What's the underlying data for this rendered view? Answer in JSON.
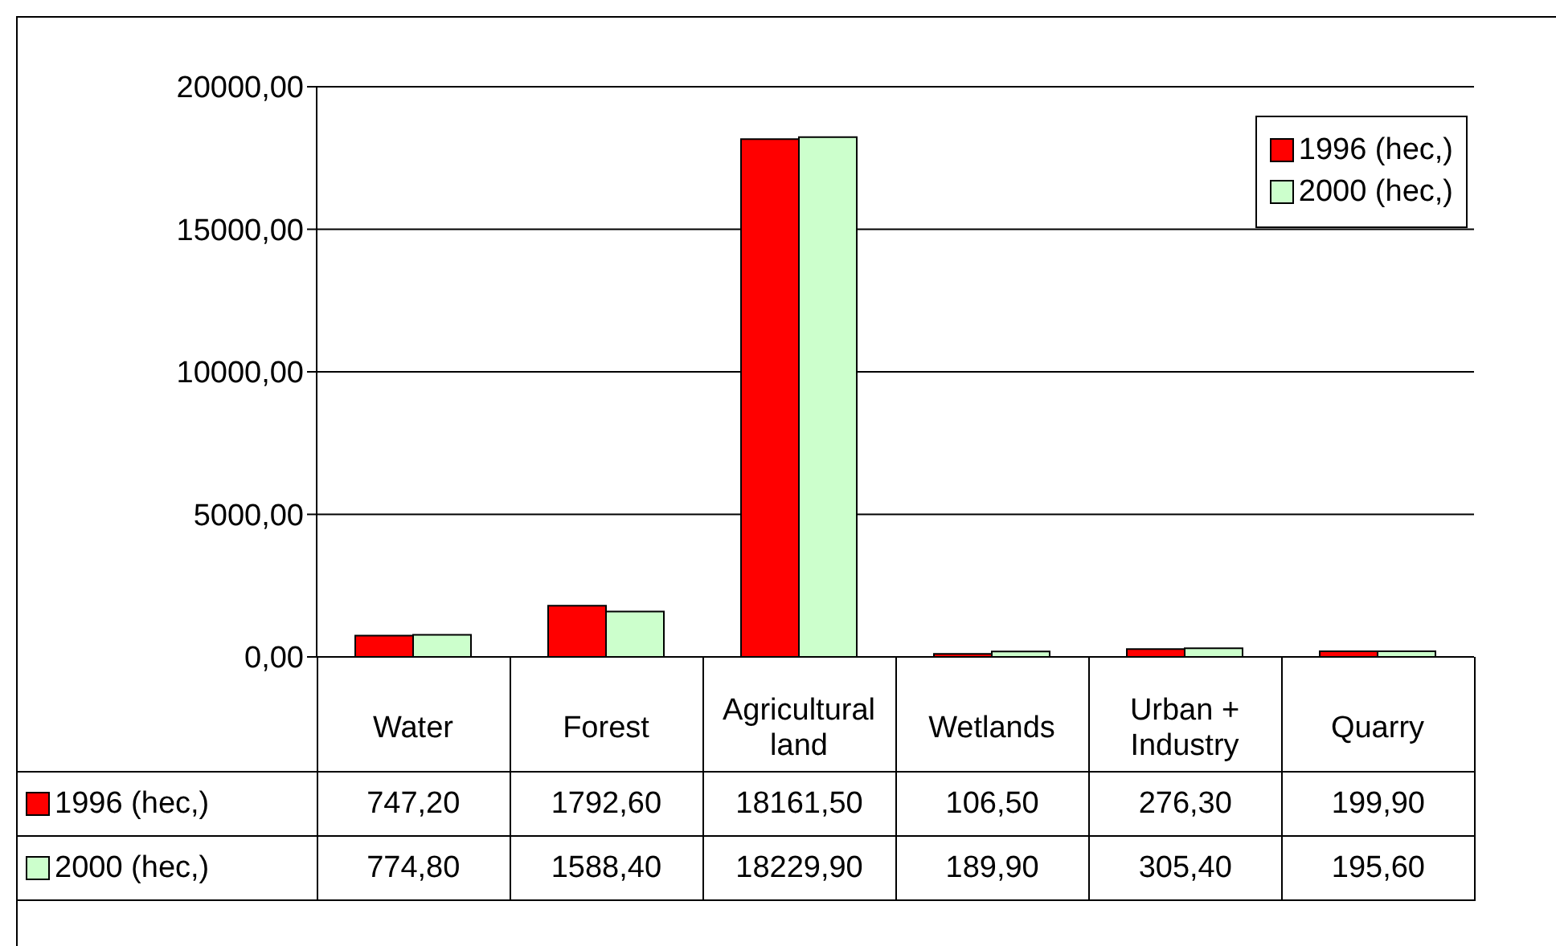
{
  "chart_data": {
    "type": "bar",
    "categories": [
      "Water",
      "Forest",
      "Agricultural land",
      "Wetlands",
      "Urban + Industry",
      "Quarry"
    ],
    "series": [
      {
        "name": "1996 (hec,)",
        "color": "#ff0000",
        "values": [
          747.2,
          1792.6,
          18161.5,
          106.5,
          276.3,
          199.9
        ],
        "value_labels": [
          "747,20",
          "1792,60",
          "18161,50",
          "106,50",
          "276,30",
          "199,90"
        ]
      },
      {
        "name": "2000 (hec,)",
        "color": "#ccffcc",
        "values": [
          774.8,
          1588.4,
          18229.9,
          189.9,
          305.4,
          195.6
        ],
        "value_labels": [
          "774,80",
          "1588,40",
          "18229,90",
          "189,90",
          "305,40",
          "195,60"
        ]
      }
    ],
    "ylim": [
      0,
      20000
    ],
    "yticks": [
      {
        "value": 0,
        "label": "0,00"
      },
      {
        "value": 5000,
        "label": "5000,00"
      },
      {
        "value": 10000,
        "label": "10000,00"
      },
      {
        "value": 15000,
        "label": "15000,00"
      },
      {
        "value": 20000,
        "label": "20000,00"
      }
    ],
    "grid": "y",
    "legend": "top right"
  }
}
